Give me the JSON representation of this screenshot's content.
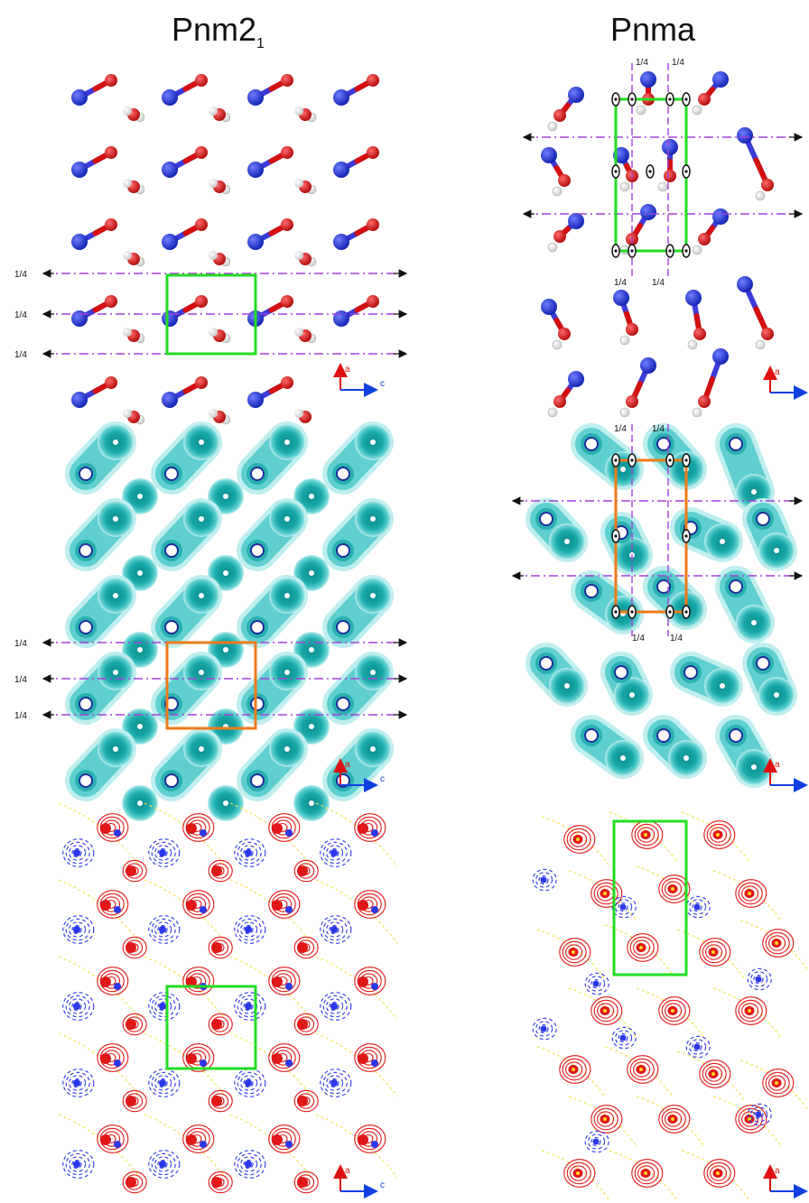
{
  "titles": {
    "left": {
      "base": "Pnm2",
      "sub": "1"
    },
    "right": {
      "base": "Pnma"
    }
  },
  "marks": {
    "quarter": "1/4",
    "axis_a": "a",
    "axis_c": "c"
  },
  "colors": {
    "nitrogen": "#1c2fd6",
    "oxygen": "#d40f0f",
    "hydrogen": "#e8e8e8",
    "bond": "#3b3bd8",
    "unit_cell_green": "#22dd22",
    "unit_cell_orange": "#ee7a1a",
    "glide_plane": "#a340d8",
    "density": "#1fb5b5",
    "axis_a": "#e01010",
    "axis_c": "#1040e0",
    "positive_contour": "#e01818",
    "negative_contour": "#2a38e8",
    "zero_contour": "#f5e35a"
  },
  "panels": [
    "structure-pnm21",
    "structure-pnma",
    "density-pnm21",
    "density-pnma",
    "deformation-pnm21",
    "deformation-pnma"
  ]
}
